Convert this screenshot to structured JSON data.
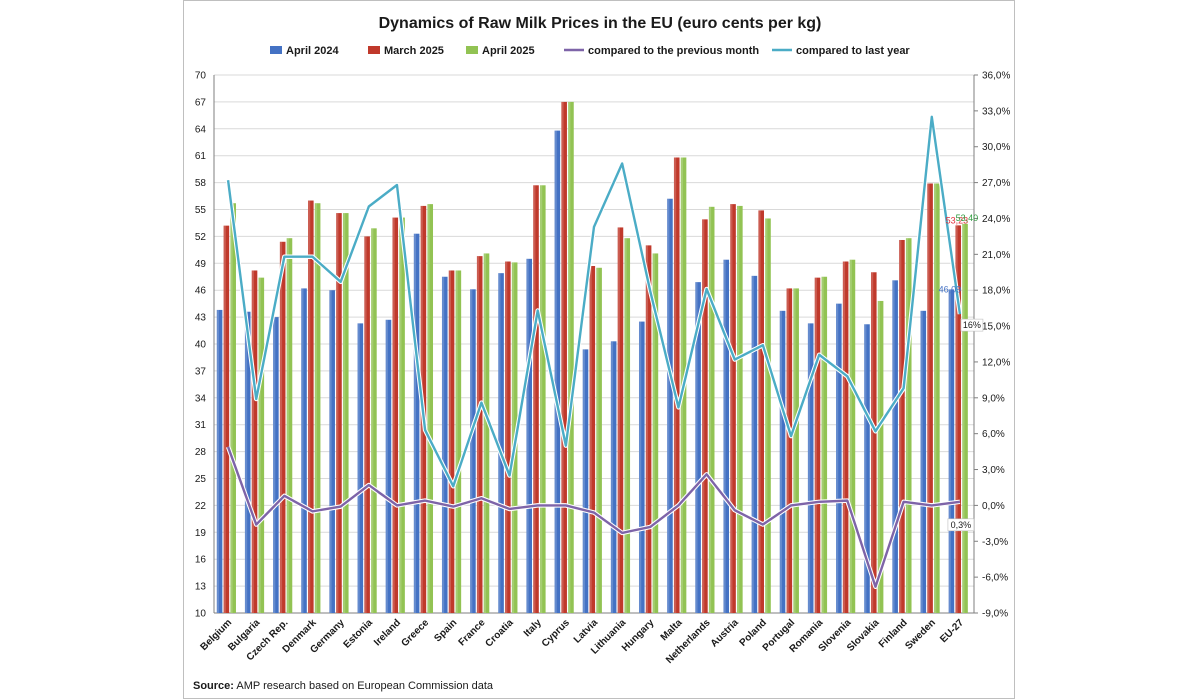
{
  "chart_data": {
    "type": "bar",
    "title": "Dynamics of Raw Milk Prices in the EU (euro cents per kg)",
    "categories": [
      "Belgium",
      "Bulgaria",
      "Czech Rep.",
      "Denmark",
      "Germany",
      "Estonia",
      "Ireland",
      "Greece",
      "Spain",
      "France",
      "Croatia",
      "Italy",
      "Cyprus",
      "Latvia",
      "Lithuania",
      "Hungary",
      "Malta",
      "Netherlands",
      "Austria",
      "Poland",
      "Portugal",
      "Romania",
      "Slovenia",
      "Slovakia",
      "Finland",
      "Sweden",
      "EU-27"
    ],
    "series": [
      {
        "name": "April 2024",
        "kind": "bar",
        "axis": "left",
        "color": "#4472c4",
        "values": [
          43.8,
          43.6,
          43.0,
          46.2,
          46.0,
          42.3,
          42.7,
          52.3,
          47.5,
          46.1,
          47.9,
          49.5,
          63.8,
          39.4,
          40.3,
          42.5,
          56.2,
          46.9,
          49.4,
          47.6,
          43.7,
          42.3,
          44.5,
          42.2,
          47.1,
          43.7,
          46.09
        ]
      },
      {
        "name": "March 2025",
        "kind": "bar",
        "axis": "left",
        "color": "#c0392b",
        "values": [
          53.2,
          48.2,
          51.4,
          56.0,
          54.6,
          52.0,
          54.1,
          55.4,
          48.2,
          49.8,
          49.2,
          57.7,
          67.0,
          48.7,
          53.0,
          51.0,
          60.8,
          53.9,
          55.6,
          54.9,
          46.2,
          47.4,
          49.2,
          48.0,
          51.6,
          57.9,
          53.23
        ]
      },
      {
        "name": "April 2025",
        "kind": "bar",
        "axis": "left",
        "color": "#92c353",
        "values": [
          55.7,
          47.4,
          51.8,
          55.7,
          54.6,
          52.9,
          54.1,
          55.6,
          48.2,
          50.1,
          49.1,
          57.7,
          67.0,
          48.5,
          51.8,
          50.1,
          60.8,
          55.3,
          55.4,
          54.0,
          46.2,
          47.5,
          49.4,
          44.8,
          51.8,
          57.9,
          53.4
        ]
      },
      {
        "name": "compared to the previous month",
        "kind": "line",
        "axis": "right",
        "color": "#7e64a8",
        "values": [
          4.9,
          -1.6,
          0.8,
          -0.5,
          -0.1,
          1.7,
          0.0,
          0.4,
          -0.1,
          0.6,
          -0.3,
          0.0,
          0.0,
          -0.6,
          -2.3,
          -1.8,
          0.0,
          2.6,
          -0.4,
          -1.6,
          0.0,
          0.3,
          0.4,
          -6.8,
          0.3,
          0.0,
          0.3
        ]
      },
      {
        "name": "compared to last year",
        "kind": "line",
        "axis": "right",
        "color": "#4bacc6",
        "values": [
          27.2,
          8.9,
          20.8,
          20.8,
          18.7,
          25.0,
          26.8,
          6.3,
          1.6,
          8.6,
          2.5,
          16.3,
          5.0,
          23.3,
          28.6,
          17.9,
          8.2,
          18.1,
          12.2,
          13.4,
          5.8,
          12.6,
          10.8,
          6.2,
          9.8,
          32.5,
          16.0
        ]
      }
    ],
    "y_left": {
      "min": 10,
      "max": 70,
      "ticks": [
        "70",
        "67",
        "64",
        "61",
        "58",
        "55",
        "52",
        "49",
        "46",
        "43",
        "40",
        "37",
        "34",
        "31",
        "28",
        "25",
        "22",
        "19",
        "16",
        "13",
        "10"
      ]
    },
    "y_right": {
      "min": -9,
      "max": 36,
      "ticks": [
        "36,0%",
        "33,0%",
        "30,0%",
        "27,0%",
        "24,0%",
        "21,0%",
        "18,0%",
        "15,0%",
        "12,0%",
        "9,0%",
        "6,0%",
        "3,0%",
        "0,0%",
        "-3,0%",
        "-6,0%",
        "-9,0%"
      ]
    },
    "grid": true,
    "legend_position": "top",
    "annotations": [
      {
        "label": "46,09",
        "color": "#4472c4",
        "value_of": "April 2024 EU-27"
      },
      {
        "label": "53,23",
        "color": "#e0303b",
        "value_of": "March 2025 EU-27"
      },
      {
        "label": "53,40",
        "color": "#2e9b3e",
        "value_of": "April 2025 EU-27"
      },
      {
        "label": "16%",
        "color": "#1a1a1a",
        "value_of": "compared to last year EU-27"
      },
      {
        "label": "0,3%",
        "color": "#1a1a1a",
        "value_of": "compared to the previous month EU-27"
      }
    ]
  },
  "source": {
    "prefix": "Source:",
    "text": " AMP research based on European Commission data"
  }
}
